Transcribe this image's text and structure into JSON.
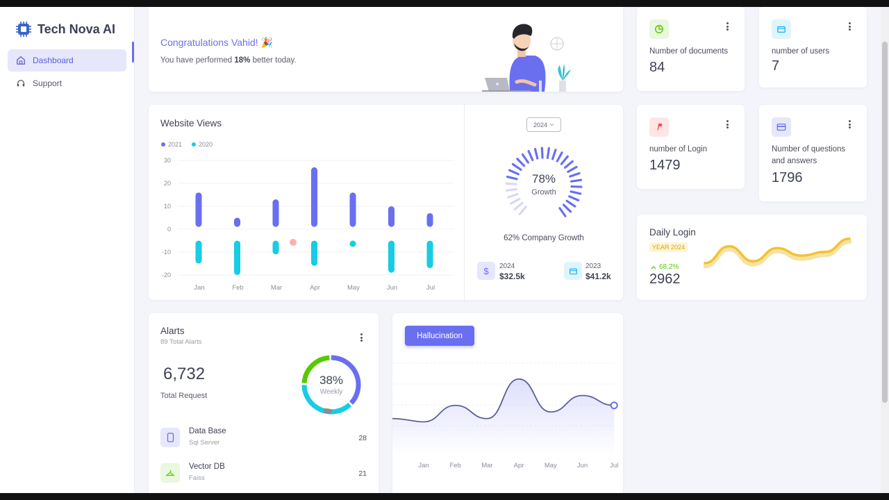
{
  "app": {
    "name": "Tech Nova AI"
  },
  "nav": {
    "items": [
      {
        "label": "Dashboard",
        "active": true,
        "icon": "home-icon"
      },
      {
        "label": "Support",
        "active": false,
        "icon": "headset-icon"
      }
    ]
  },
  "welcome": {
    "title": "Congratulations Vahid! 🎉",
    "text_prefix": "You have performed ",
    "text_bold": "18%",
    "text_suffix": " better today."
  },
  "stats": [
    {
      "label": "Number of documents",
      "value": "84",
      "icon": "pie-chart-icon",
      "color": "#56ca00"
    },
    {
      "label": "number of users",
      "value": "7",
      "icon": "wallet-icon",
      "color": "#16b1ff"
    },
    {
      "label": "number of Login",
      "value": "1479",
      "icon": "paypal-icon",
      "color": "#ff4c51"
    },
    {
      "label": "Number of questions and answers",
      "value": "1796",
      "icon": "credit-card-icon",
      "color": "#6a6ff0"
    }
  ],
  "website_views": {
    "title": "Website Views",
    "legend": [
      "2021",
      "2020"
    ],
    "year_select": "2024",
    "growth_percent": "78%",
    "growth_label": "Growth",
    "company_growth": "62% Company Growth",
    "summary": [
      {
        "year": "2024",
        "value": "$32.5k",
        "icon": "dollar-icon"
      },
      {
        "year": "2023",
        "value": "$41.2k",
        "icon": "wallet-icon"
      }
    ]
  },
  "daily_login": {
    "title": "Daily Login",
    "badge": "YEAR 2024",
    "change": "68.2%",
    "value": "2962"
  },
  "alerts": {
    "title": "Alarts",
    "subtitle": "89 Total Alarts",
    "total": "6,732",
    "total_label": "Total Request",
    "donut_percent": "38%",
    "donut_label": "Weekly",
    "items": [
      {
        "name": "Data Base",
        "sub": "Sql Server",
        "count": "28",
        "icon": "mobile-icon"
      },
      {
        "name": "Vector DB",
        "sub": "Faiss",
        "count": "21",
        "icon": "hanger-icon"
      }
    ]
  },
  "hallucination": {
    "button": "Hallucination"
  },
  "colors": {
    "primary": "#6a6ff0",
    "cyan": "#16cde3",
    "green": "#56ca00",
    "yellow": "#f2c230",
    "text": "#4b4b5c"
  },
  "chart_data": [
    {
      "type": "bar",
      "title": "Website Views",
      "categories": [
        "Jan",
        "Feb",
        "Mar",
        "Apr",
        "May",
        "Jun",
        "Jul"
      ],
      "ylim": [
        -20,
        30
      ],
      "yticks": [
        30,
        20,
        10,
        0,
        -10,
        -20
      ],
      "series": [
        {
          "name": "2021",
          "low": [
            1,
            1,
            1,
            1,
            1,
            1,
            1
          ],
          "high": [
            16,
            5,
            13,
            27,
            16,
            10,
            7
          ]
        },
        {
          "name": "2020",
          "low": [
            -15,
            -20,
            -11,
            -16,
            -7,
            -19,
            -17
          ],
          "high": [
            -5,
            -5,
            -5,
            -5,
            -5,
            -5,
            -5
          ]
        }
      ]
    },
    {
      "type": "line",
      "title": "Daily Login",
      "x": [
        1,
        2,
        3,
        4,
        5,
        6,
        7
      ],
      "values": [
        15,
        60,
        20,
        55,
        35,
        45,
        80
      ]
    },
    {
      "type": "area",
      "categories": [
        "Jan",
        "Feb",
        "Mar",
        "Apr",
        "May",
        "Jun",
        "Jul"
      ],
      "values": [
        30,
        55,
        35,
        95,
        45,
        70,
        55
      ]
    },
    {
      "type": "pie",
      "values": [
        38,
        38,
        24
      ],
      "percent_label": "38%"
    },
    {
      "type": "pie",
      "values": [
        78,
        22
      ],
      "percent_label": "78%"
    }
  ]
}
